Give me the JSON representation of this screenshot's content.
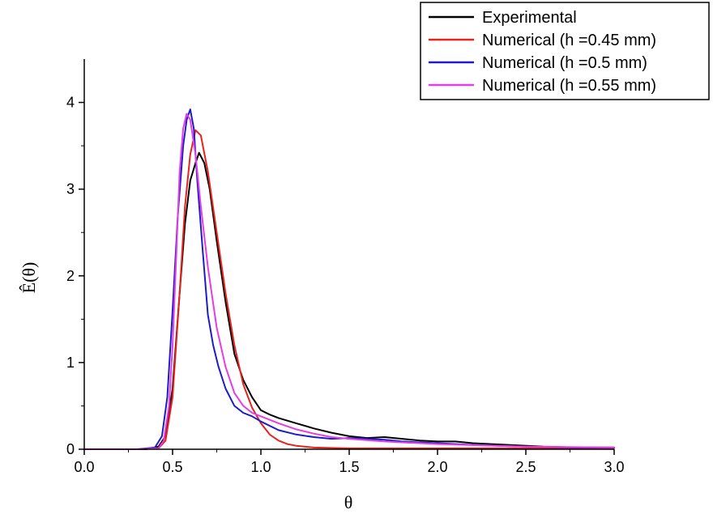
{
  "chart_data": {
    "type": "line",
    "xlabel": "θ",
    "ylabel": "Ê(θ)",
    "xlim": [
      0,
      3
    ],
    "ylim": [
      0,
      4.5
    ],
    "xticks": [
      "0.0",
      "0.5",
      "1.0",
      "1.5",
      "2.0",
      "2.5",
      "3.0"
    ],
    "yticks": [
      "0",
      "1",
      "2",
      "3",
      "4"
    ],
    "grid": false,
    "legend_position": "top-right",
    "series": [
      {
        "name": "Experimental",
        "color": "#000000",
        "x": [
          0,
          0.2,
          0.35,
          0.42,
          0.46,
          0.5,
          0.54,
          0.57,
          0.6,
          0.63,
          0.65,
          0.68,
          0.71,
          0.75,
          0.8,
          0.85,
          0.9,
          0.95,
          1.0,
          1.05,
          1.1,
          1.2,
          1.3,
          1.4,
          1.5,
          1.6,
          1.7,
          1.8,
          1.9,
          2.0,
          2.1,
          2.2,
          2.4,
          2.6,
          2.8,
          3.0
        ],
        "y": [
          0,
          0,
          0,
          0.03,
          0.15,
          0.7,
          1.8,
          2.6,
          3.1,
          3.3,
          3.42,
          3.3,
          3.0,
          2.4,
          1.7,
          1.1,
          0.8,
          0.6,
          0.45,
          0.4,
          0.36,
          0.3,
          0.24,
          0.19,
          0.15,
          0.13,
          0.14,
          0.12,
          0.1,
          0.09,
          0.09,
          0.07,
          0.05,
          0.03,
          0.02,
          0.02
        ]
      },
      {
        "name": "Numerical (h =0.45 mm)",
        "color": "#e8221c",
        "x": [
          0,
          0.3,
          0.42,
          0.46,
          0.5,
          0.54,
          0.57,
          0.6,
          0.63,
          0.66,
          0.7,
          0.75,
          0.8,
          0.85,
          0.9,
          0.95,
          1.0,
          1.05,
          1.1,
          1.15,
          1.2,
          1.3,
          1.5,
          1.8,
          2.2,
          2.6,
          3.0
        ],
        "y": [
          0,
          0,
          0.01,
          0.1,
          0.6,
          1.8,
          2.8,
          3.4,
          3.68,
          3.62,
          3.2,
          2.5,
          1.8,
          1.2,
          0.75,
          0.48,
          0.3,
          0.17,
          0.1,
          0.06,
          0.04,
          0.02,
          0.01,
          0.01,
          0.01,
          0.01,
          0.01
        ]
      },
      {
        "name": "Numerical (h =0.5 mm)",
        "color": "#1c1cc8",
        "x": [
          0,
          0.3,
          0.4,
          0.44,
          0.47,
          0.5,
          0.53,
          0.56,
          0.58,
          0.6,
          0.62,
          0.64,
          0.67,
          0.7,
          0.73,
          0.76,
          0.8,
          0.85,
          0.9,
          0.95,
          1.0,
          1.1,
          1.2,
          1.3,
          1.4,
          1.5,
          1.6,
          1.7,
          1.8,
          2.0,
          2.2,
          2.5,
          2.8,
          3.0
        ],
        "y": [
          0,
          0,
          0.02,
          0.15,
          0.6,
          1.6,
          2.7,
          3.5,
          3.8,
          3.92,
          3.7,
          3.1,
          2.3,
          1.55,
          1.2,
          0.95,
          0.7,
          0.5,
          0.42,
          0.38,
          0.32,
          0.22,
          0.17,
          0.14,
          0.12,
          0.13,
          0.12,
          0.11,
          0.09,
          0.07,
          0.05,
          0.03,
          0.02,
          0.02
        ]
      },
      {
        "name": "Numerical (h =0.55 mm)",
        "color": "#e63ce6",
        "x": [
          0,
          0.3,
          0.42,
          0.45,
          0.48,
          0.5,
          0.52,
          0.54,
          0.56,
          0.58,
          0.6,
          0.63,
          0.66,
          0.7,
          0.75,
          0.8,
          0.85,
          0.9,
          0.95,
          1.0,
          1.1,
          1.2,
          1.3,
          1.4,
          1.5,
          1.7,
          2.0,
          2.5,
          3.0
        ],
        "y": [
          0,
          0,
          0.01,
          0.1,
          0.5,
          1.2,
          2.2,
          3.2,
          3.7,
          3.87,
          3.8,
          3.4,
          2.8,
          2.1,
          1.4,
          0.95,
          0.65,
          0.5,
          0.42,
          0.38,
          0.3,
          0.23,
          0.18,
          0.14,
          0.12,
          0.09,
          0.06,
          0.03,
          0.02
        ]
      }
    ]
  }
}
